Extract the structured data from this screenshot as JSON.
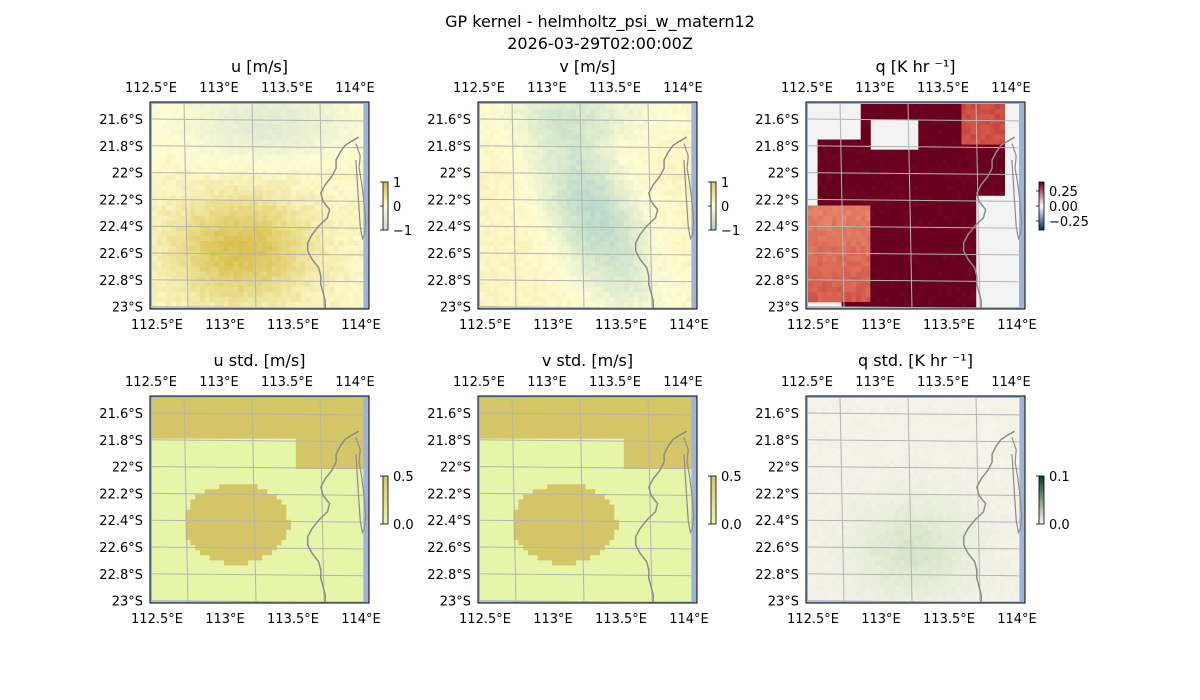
{
  "figure": {
    "title_line1": "GP kernel - helmholtz_psi_w_matern12",
    "title_line2": "2026-03-29T02:00:00Z"
  },
  "colors": {
    "land": "#f3f3f3",
    "ocean": "#9db3dc",
    "grid": "#b4b4b4",
    "coast": "#8c8c8c"
  },
  "chart_data": [
    {
      "type": "heatmap",
      "title": "u [m/s]",
      "variable": "u",
      "top_ticks": [
        "112.5°E",
        "113°E",
        "113.5°E",
        "114°E"
      ],
      "bottom_ticks": [
        "112.5°E",
        "113°E",
        "113.5°E",
        "114°E"
      ],
      "left_ticks": [
        "21.6°S",
        "21.8°S",
        "22°S",
        "22.2°S",
        "22.4°S",
        "22.6°S",
        "22.8°S",
        "23°S"
      ],
      "colorbar": {
        "ticks": [
          "1",
          "0",
          "−1"
        ],
        "cmap": [
          "#c9dcd6",
          "#fffdd2",
          "#d6bc46"
        ],
        "range": [
          -1,
          1
        ]
      },
      "xlim": [
        112.5,
        114.2
      ],
      "ylim": [
        -23.0,
        -21.5
      ]
    },
    {
      "type": "heatmap",
      "title": "v [m/s]",
      "variable": "v",
      "top_ticks": [
        "112.5°E",
        "113°E",
        "113.5°E",
        "114°E"
      ],
      "bottom_ticks": [
        "112.5°E",
        "113°E",
        "113.5°E",
        "114°E"
      ],
      "left_ticks": [
        "21.6°S",
        "21.8°S",
        "22°S",
        "22.2°S",
        "22.4°S",
        "22.6°S",
        "22.8°S",
        "23°S"
      ],
      "colorbar": {
        "ticks": [
          "1",
          "0",
          "−1"
        ],
        "cmap": [
          "#a8cfc8",
          "#fffdd2",
          "#e3c766"
        ],
        "range": [
          -1,
          1
        ]
      },
      "xlim": [
        112.5,
        114.2
      ],
      "ylim": [
        -23.0,
        -21.5
      ]
    },
    {
      "type": "heatmap",
      "title": "q [K hr ⁻¹]",
      "variable": "q",
      "top_ticks": [
        "112.5°E",
        "113°E",
        "113.5°E",
        "114°E"
      ],
      "bottom_ticks": [
        "112.5°E",
        "113°E",
        "113.5°E",
        "114°E"
      ],
      "left_ticks": [
        "21.6°S",
        "21.8°S",
        "22°S",
        "22.2°S",
        "22.4°S",
        "22.6°S",
        "22.8°S",
        "23°S"
      ],
      "colorbar": {
        "ticks": [
          "0.25",
          "0.00",
          "−0.25"
        ],
        "cmap": [
          "#053061",
          "#f7f7f7",
          "#67001f"
        ],
        "range": [
          -0.35,
          0.35
        ]
      },
      "xlim": [
        112.5,
        114.2
      ],
      "ylim": [
        -23.0,
        -21.5
      ]
    },
    {
      "type": "heatmap",
      "title": "u std. [m/s]",
      "variable": "u_std",
      "top_ticks": [
        "112.5°E",
        "113°E",
        "113.5°E",
        "114°E"
      ],
      "bottom_ticks": [
        "112.5°E",
        "113°E",
        "113.5°E",
        "114°E"
      ],
      "left_ticks": [
        "21.6°S",
        "21.8°S",
        "22°S",
        "22.2°S",
        "22.4°S",
        "22.6°S",
        "22.8°S",
        "23°S"
      ],
      "colorbar": {
        "ticks": [
          "0.5",
          "0.0"
        ],
        "cmap": [
          "#e6f5a8",
          "#d4c567"
        ],
        "range": [
          0,
          0.5
        ]
      },
      "xlim": [
        112.5,
        114.2
      ],
      "ylim": [
        -23.0,
        -21.5
      ]
    },
    {
      "type": "heatmap",
      "title": "v std. [m/s]",
      "variable": "v_std",
      "top_ticks": [
        "112.5°E",
        "113°E",
        "113.5°E",
        "114°E"
      ],
      "bottom_ticks": [
        "112.5°E",
        "113°E",
        "113.5°E",
        "114°E"
      ],
      "left_ticks": [
        "21.6°S",
        "21.8°S",
        "22°S",
        "22.2°S",
        "22.4°S",
        "22.6°S",
        "22.8°S",
        "23°S"
      ],
      "colorbar": {
        "ticks": [
          "0.5",
          "0.0"
        ],
        "cmap": [
          "#e6f5a8",
          "#d4c567"
        ],
        "range": [
          0,
          0.5
        ]
      },
      "xlim": [
        112.5,
        114.2
      ],
      "ylim": [
        -23.0,
        -21.5
      ]
    },
    {
      "type": "heatmap",
      "title": "q std. [K hr ⁻¹]",
      "variable": "q_std",
      "top_ticks": [
        "112.5°E",
        "113°E",
        "113.5°E",
        "114°E"
      ],
      "bottom_ticks": [
        "112.5°E",
        "113°E",
        "113.5°E",
        "114°E"
      ],
      "left_ticks": [
        "21.6°S",
        "21.8°S",
        "22°S",
        "22.2°S",
        "22.4°S",
        "22.6°S",
        "22.8°S",
        "23°S"
      ],
      "colorbar": {
        "ticks": [
          "0.1",
          "0.0"
        ],
        "cmap": [
          "#fff5f0",
          "#00441b"
        ],
        "range": [
          0,
          0.15
        ]
      },
      "xlim": [
        112.5,
        114.2
      ],
      "ylim": [
        -23.0,
        -21.5
      ]
    }
  ]
}
